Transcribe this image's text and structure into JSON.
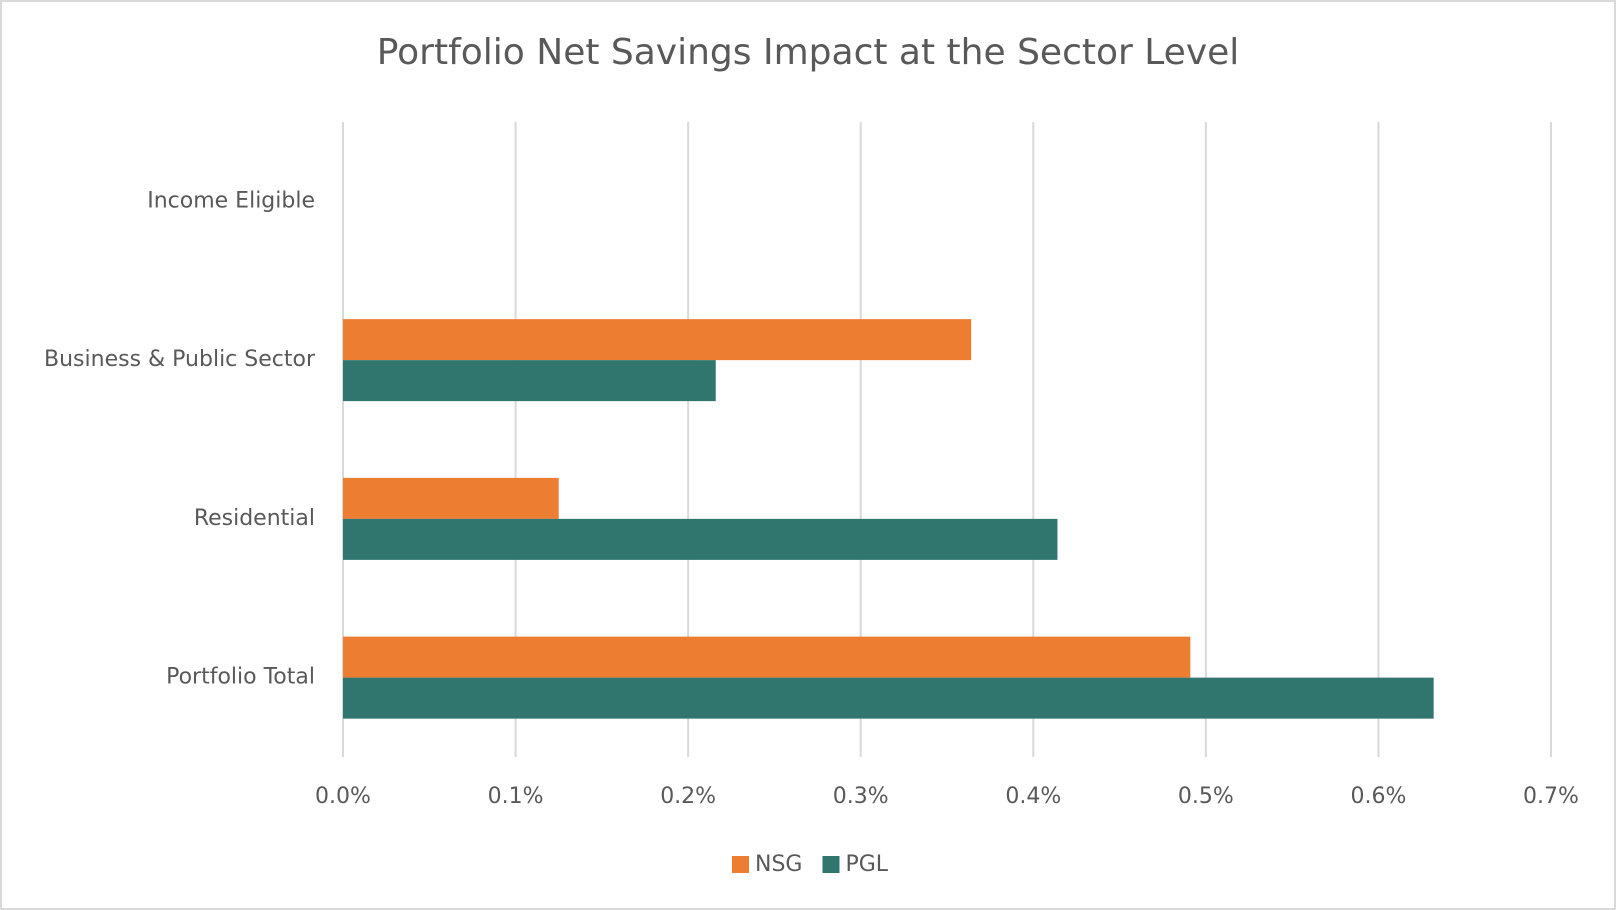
{
  "chart_data": {
    "type": "hbar",
    "title": "Portfolio Net Savings Impact at the Sector Level",
    "categories": [
      "Income Eligible",
      "Business & Public Sector",
      "Residential",
      "Portfolio Total"
    ],
    "series": [
      {
        "name": "NSG",
        "color": "#ed7d31",
        "values": [
          0,
          0.364,
          0.125,
          0.491
        ]
      },
      {
        "name": "PGL",
        "color": "#31756f",
        "values": [
          0,
          0.216,
          0.414,
          0.632
        ]
      }
    ],
    "xlim": [
      0,
      0.7
    ],
    "xticks": [
      {
        "value": 0,
        "label": "0.0%"
      },
      {
        "value": 0.1,
        "label": "0.1%"
      },
      {
        "value": 0.2,
        "label": "0.2%"
      },
      {
        "value": 0.3,
        "label": "0.3%"
      },
      {
        "value": 0.4,
        "label": "0.4%"
      },
      {
        "value": 0.5,
        "label": "0.5%"
      },
      {
        "value": 0.6,
        "label": "0.6%"
      },
      {
        "value": 0.7,
        "label": "0.7%"
      }
    ],
    "grid": true,
    "legend": "bottom"
  }
}
